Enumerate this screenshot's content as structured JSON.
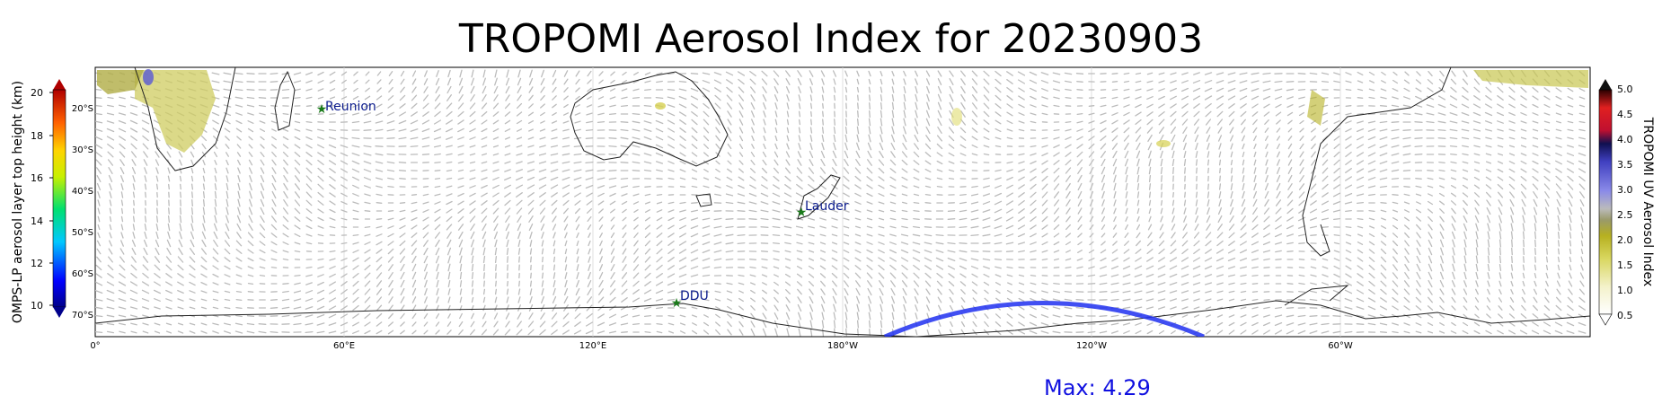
{
  "title": "TROPOMI Aerosol Index for 20230903",
  "max_label": "Max: 4.29",
  "left_colorbar": {
    "label": "OMPS-LP aerosol layer top height (km)",
    "ticks": [
      "10",
      "12",
      "14",
      "16",
      "18",
      "20"
    ]
  },
  "right_colorbar": {
    "label": "TROPOMI UV Aerosol Index",
    "ticks": [
      "0.5",
      "1.0",
      "1.5",
      "2.0",
      "2.5",
      "3.0",
      "3.5",
      "4.0",
      "4.5",
      "5.0"
    ]
  },
  "map": {
    "lon_ticks": [
      "0°",
      "60°E",
      "120°E",
      "180°W",
      "120°W",
      "60°W"
    ],
    "lat_ticks": [
      "20°S",
      "30°S",
      "40°S",
      "50°S",
      "60°S",
      "70°S"
    ],
    "sites": [
      {
        "name": "Reunion"
      },
      {
        "name": "Lauder"
      },
      {
        "name": "DDU"
      }
    ]
  }
}
